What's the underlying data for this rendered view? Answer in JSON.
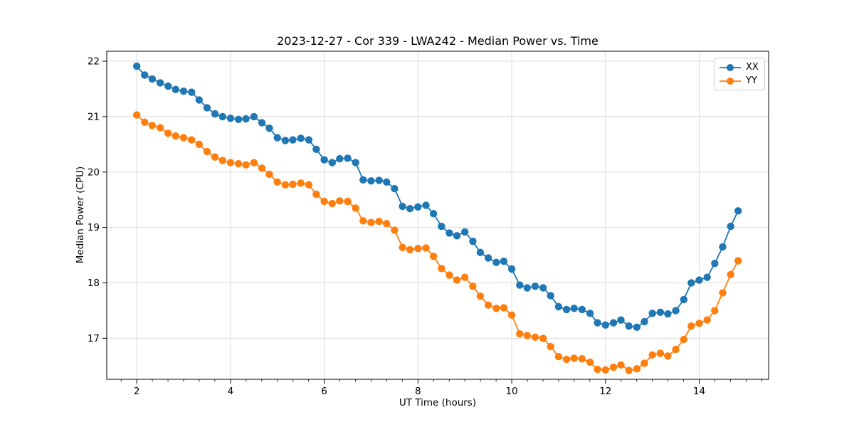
{
  "figure": {
    "title": "2023-12-27 - Cor 339 - LWA242 - Median Power vs. Time",
    "xlabel": "UT Time (hours)",
    "ylabel": "Median Power (CPU)"
  },
  "legend": {
    "entries": [
      {
        "label": "XX",
        "color": "#1f77b4"
      },
      {
        "label": "YY",
        "color": "#ff7f0e"
      }
    ],
    "position": "upper right"
  },
  "colors": {
    "xx": "#1f77b4",
    "yy": "#ff7f0e",
    "grid": "#dcdcdc",
    "spine": "#000000",
    "background": "#ffffff"
  },
  "chart_data": {
    "type": "line",
    "title": "2023-12-27 - Cor 339 - LWA242 - Median Power vs. Time",
    "xlabel": "UT Time (hours)",
    "ylabel": "Median Power (CPU)",
    "grid": true,
    "legend_position": "upper right",
    "marker": "circle",
    "xlim": [
      1.36,
      15.48
    ],
    "ylim": [
      16.26,
      22.18
    ],
    "x_ticks": [
      2,
      4,
      6,
      8,
      10,
      12,
      14
    ],
    "y_ticks": [
      17,
      18,
      19,
      20,
      21,
      22
    ],
    "x_minor_step": 0.33333,
    "x": [
      2,
      2.17,
      2.33,
      2.5,
      2.67,
      2.83,
      3,
      3.17,
      3.33,
      3.5,
      3.67,
      3.83,
      4,
      4.17,
      4.33,
      4.5,
      4.67,
      4.83,
      5,
      5.17,
      5.33,
      5.5,
      5.67,
      5.83,
      6,
      6.17,
      6.33,
      6.5,
      6.67,
      6.83,
      7,
      7.17,
      7.33,
      7.5,
      7.67,
      7.83,
      8,
      8.17,
      8.33,
      8.5,
      8.67,
      8.83,
      9,
      9.17,
      9.33,
      9.5,
      9.67,
      9.83,
      10,
      10.17,
      10.33,
      10.5,
      10.67,
      10.83,
      11,
      11.17,
      11.33,
      11.5,
      11.67,
      11.83,
      12,
      12.17,
      12.33,
      12.5,
      12.67,
      12.83,
      13,
      13.17,
      13.33,
      13.5,
      13.67,
      13.83,
      14,
      14.17,
      14.33,
      14.5,
      14.67,
      14.83
    ],
    "series": [
      {
        "name": "XX",
        "color": "#1f77b4",
        "values": [
          21.91,
          21.75,
          21.68,
          21.61,
          21.55,
          21.49,
          21.46,
          21.44,
          21.3,
          21.16,
          21.05,
          21.0,
          20.97,
          20.95,
          20.96,
          21.0,
          20.89,
          20.79,
          20.62,
          20.57,
          20.58,
          20.61,
          20.58,
          20.41,
          20.22,
          20.17,
          20.24,
          20.25,
          20.17,
          19.86,
          19.84,
          19.85,
          19.82,
          19.7,
          19.38,
          19.34,
          19.37,
          19.4,
          19.25,
          19.02,
          18.9,
          18.85,
          18.92,
          18.75,
          18.55,
          18.45,
          18.37,
          18.39,
          18.25,
          17.96,
          17.91,
          17.94,
          17.91,
          17.77,
          17.57,
          17.52,
          17.54,
          17.52,
          17.45,
          17.28,
          17.24,
          17.28,
          17.33,
          17.22,
          17.2,
          17.3,
          17.45,
          17.47,
          17.44,
          17.5,
          17.7,
          18.0,
          18.05,
          18.1,
          18.35,
          18.65,
          19.02,
          19.3
        ]
      },
      {
        "name": "YY",
        "color": "#ff7f0e",
        "values": [
          21.03,
          20.9,
          20.84,
          20.8,
          20.7,
          20.65,
          20.62,
          20.58,
          20.5,
          20.37,
          20.27,
          20.21,
          20.17,
          20.15,
          20.13,
          20.17,
          20.07,
          19.96,
          19.82,
          19.77,
          19.78,
          19.8,
          19.77,
          19.6,
          19.47,
          19.43,
          19.48,
          19.47,
          19.35,
          19.12,
          19.09,
          19.11,
          19.07,
          18.95,
          18.64,
          18.6,
          18.62,
          18.63,
          18.48,
          18.26,
          18.14,
          18.05,
          18.1,
          17.94,
          17.76,
          17.6,
          17.54,
          17.55,
          17.42,
          17.08,
          17.05,
          17.02,
          17.0,
          16.85,
          16.67,
          16.62,
          16.64,
          16.63,
          16.57,
          16.44,
          16.43,
          16.48,
          16.52,
          16.42,
          16.45,
          16.55,
          16.7,
          16.73,
          16.68,
          16.8,
          16.98,
          17.22,
          17.27,
          17.33,
          17.5,
          17.82,
          18.15,
          18.4
        ]
      }
    ]
  }
}
